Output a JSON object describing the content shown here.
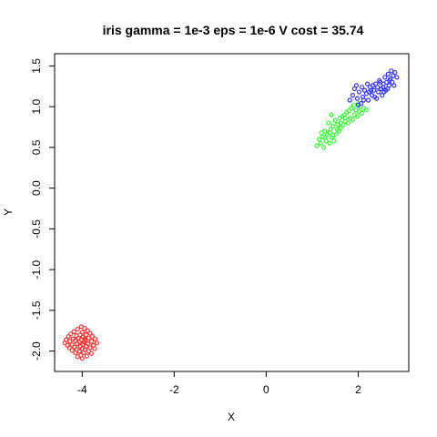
{
  "chart_data": {
    "type": "scatter",
    "title": "iris gamma = 1e-3 eps = 1e-6 V cost = 35.74",
    "xlabel": "X",
    "ylabel": "Y",
    "xlim": [
      -4.6,
      3.1
    ],
    "ylim": [
      -2.25,
      1.65
    ],
    "xticks": [
      -4,
      -2,
      0,
      2
    ],
    "xtick_labels": [
      "-4",
      "-2",
      "0",
      "2"
    ],
    "yticks": [
      -2.0,
      -1.5,
      -1.0,
      -0.5,
      0.0,
      0.5,
      1.0,
      1.5
    ],
    "ytick_labels": [
      "-2.0",
      "-1.5",
      "-1.0",
      "-0.5",
      "0.0",
      "0.5",
      "1.0",
      "1.5"
    ],
    "grid": false,
    "legend": "none",
    "series": [
      {
        "color": "#ff3333",
        "points": [
          [
            -4.02,
            -1.7
          ],
          [
            -3.95,
            -1.72
          ],
          [
            -4.1,
            -1.73
          ],
          [
            -3.88,
            -1.75
          ],
          [
            -4.18,
            -1.76
          ],
          [
            -4.0,
            -1.77
          ],
          [
            -3.83,
            -1.78
          ],
          [
            -4.25,
            -1.79
          ],
          [
            -4.05,
            -1.8
          ],
          [
            -3.92,
            -1.8
          ],
          [
            -4.13,
            -1.81
          ],
          [
            -3.78,
            -1.82
          ],
          [
            -4.3,
            -1.82
          ],
          [
            -3.98,
            -1.83
          ],
          [
            -4.08,
            -1.84
          ],
          [
            -3.86,
            -1.84
          ],
          [
            -4.2,
            -1.85
          ],
          [
            -3.72,
            -1.85
          ],
          [
            -4.35,
            -1.86
          ],
          [
            -4.02,
            -1.86
          ],
          [
            -3.93,
            -1.87
          ],
          [
            -4.15,
            -1.87
          ],
          [
            -3.8,
            -1.88
          ],
          [
            -4.27,
            -1.88
          ],
          [
            -4.06,
            -1.89
          ],
          [
            -3.96,
            -1.89
          ],
          [
            -3.68,
            -1.9
          ],
          [
            -4.38,
            -1.9
          ],
          [
            -4.11,
            -1.91
          ],
          [
            -3.88,
            -1.91
          ],
          [
            -4.22,
            -1.92
          ],
          [
            -3.99,
            -1.92
          ],
          [
            -3.76,
            -1.93
          ],
          [
            -4.32,
            -1.93
          ],
          [
            -4.04,
            -1.94
          ],
          [
            -3.91,
            -1.94
          ],
          [
            -4.17,
            -1.95
          ],
          [
            -3.83,
            -1.96
          ],
          [
            -4.28,
            -1.96
          ],
          [
            -4.0,
            -1.97
          ],
          [
            -3.73,
            -1.97
          ],
          [
            -4.12,
            -1.98
          ],
          [
            -3.94,
            -1.98
          ],
          [
            -4.22,
            -1.99
          ],
          [
            -3.86,
            -2.0
          ],
          [
            -4.06,
            -2.0
          ],
          [
            -4.15,
            -2.02
          ],
          [
            -3.97,
            -2.02
          ],
          [
            -3.8,
            -2.03
          ],
          [
            -4.03,
            -2.05
          ],
          [
            -4.1,
            -2.07
          ],
          [
            -3.9,
            -2.06
          ],
          [
            -4.0,
            -2.09
          ],
          [
            -3.95,
            -1.85
          ]
        ]
      },
      {
        "color": "#33ff33",
        "points": [
          [
            1.1,
            0.52
          ],
          [
            1.18,
            0.55
          ],
          [
            1.25,
            0.5
          ],
          [
            1.3,
            0.58
          ],
          [
            1.15,
            0.6
          ],
          [
            1.38,
            0.55
          ],
          [
            1.22,
            0.63
          ],
          [
            1.42,
            0.62
          ],
          [
            1.33,
            0.66
          ],
          [
            1.48,
            0.58
          ],
          [
            1.27,
            0.7
          ],
          [
            1.52,
            0.66
          ],
          [
            1.4,
            0.72
          ],
          [
            1.58,
            0.7
          ],
          [
            1.45,
            0.76
          ],
          [
            1.35,
            0.8
          ],
          [
            1.62,
            0.74
          ],
          [
            1.55,
            0.78
          ],
          [
            1.68,
            0.78
          ],
          [
            1.5,
            0.83
          ],
          [
            1.72,
            0.82
          ],
          [
            1.6,
            0.86
          ],
          [
            1.78,
            0.8
          ],
          [
            1.65,
            0.88
          ],
          [
            1.82,
            0.86
          ],
          [
            1.7,
            0.9
          ],
          [
            1.88,
            0.84
          ],
          [
            1.75,
            0.93
          ],
          [
            1.92,
            0.9
          ],
          [
            1.8,
            0.95
          ],
          [
            1.98,
            0.88
          ],
          [
            1.85,
            0.98
          ],
          [
            2.02,
            0.94
          ],
          [
            1.9,
            1.02
          ],
          [
            2.08,
            0.92
          ],
          [
            1.95,
            0.96
          ],
          [
            2.12,
            0.98
          ],
          [
            2.0,
            1.04
          ],
          [
            2.18,
            0.96
          ],
          [
            1.45,
            0.65
          ],
          [
            1.38,
            0.68
          ],
          [
            1.62,
            0.8
          ],
          [
            1.28,
            0.62
          ],
          [
            1.55,
            0.72
          ],
          [
            1.72,
            0.86
          ],
          [
            2.05,
            1.0
          ],
          [
            1.42,
            0.9
          ],
          [
            1.2,
            0.68
          ]
        ]
      },
      {
        "color": "#3333ff",
        "points": [
          [
            1.82,
            1.08
          ],
          [
            1.88,
            1.14
          ],
          [
            1.92,
            1.22
          ],
          [
            1.98,
            1.1
          ],
          [
            2.02,
            1.18
          ],
          [
            2.06,
            1.04
          ],
          [
            2.1,
            1.12
          ],
          [
            2.14,
            1.2
          ],
          [
            2.18,
            1.16
          ],
          [
            2.22,
            1.08
          ],
          [
            2.26,
            1.24
          ],
          [
            2.3,
            1.14
          ],
          [
            2.34,
            1.2
          ],
          [
            2.38,
            1.28
          ],
          [
            2.4,
            1.1
          ],
          [
            2.44,
            1.18
          ],
          [
            2.46,
            1.32
          ],
          [
            2.5,
            1.22
          ],
          [
            2.52,
            1.14
          ],
          [
            2.55,
            1.28
          ],
          [
            2.58,
            1.36
          ],
          [
            2.6,
            1.2
          ],
          [
            2.62,
            1.3
          ],
          [
            2.65,
            1.4
          ],
          [
            2.67,
            1.26
          ],
          [
            2.7,
            1.34
          ],
          [
            2.72,
            1.44
          ],
          [
            2.74,
            1.3
          ],
          [
            2.76,
            1.38
          ],
          [
            2.78,
            1.26
          ],
          [
            2.8,
            1.42
          ],
          [
            2.56,
            1.18
          ],
          [
            2.42,
            1.24
          ],
          [
            2.32,
            1.26
          ],
          [
            2.2,
            1.28
          ],
          [
            2.08,
            1.24
          ],
          [
            1.96,
            1.26
          ],
          [
            2.0,
            1.02
          ],
          [
            2.24,
            1.18
          ],
          [
            2.48,
            1.3
          ],
          [
            2.64,
            1.22
          ],
          [
            2.36,
            1.12
          ],
          [
            2.12,
            1.08
          ],
          [
            2.68,
            1.32
          ],
          [
            2.84,
            1.36
          ],
          [
            2.54,
            1.24
          ],
          [
            2.28,
            1.2
          ]
        ]
      }
    ]
  }
}
